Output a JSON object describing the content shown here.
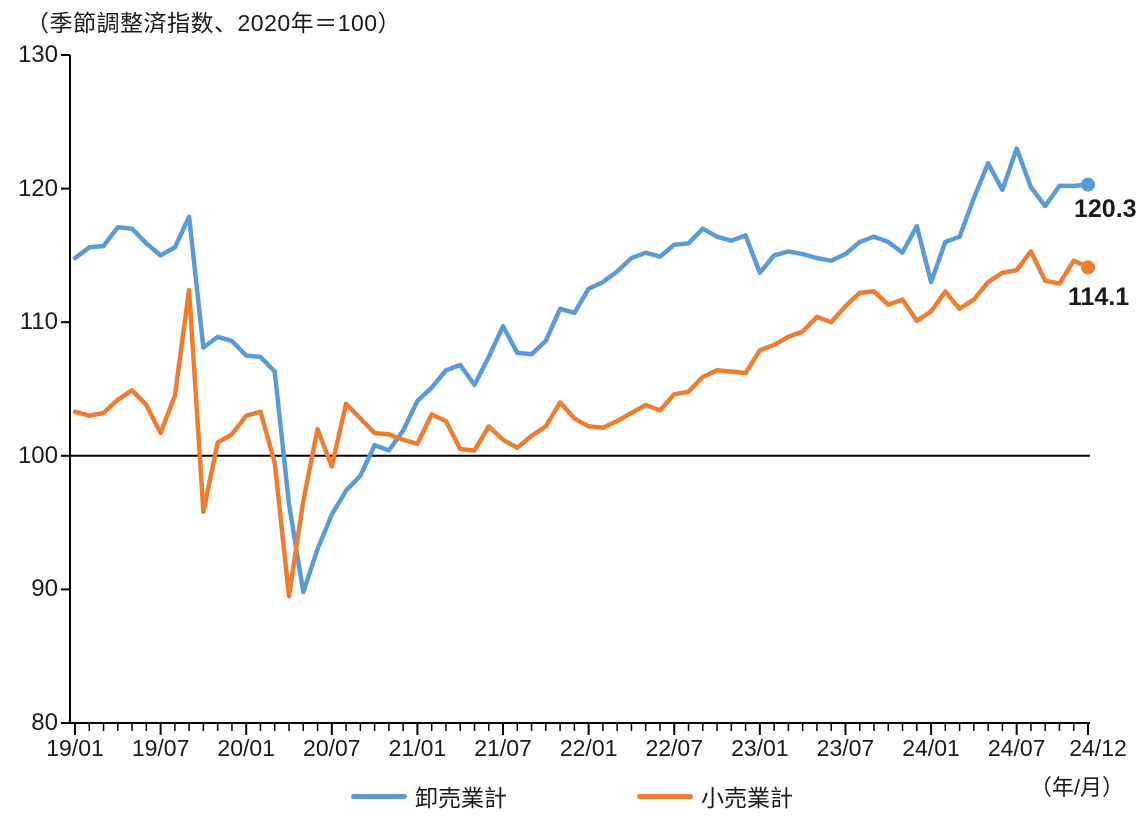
{
  "title": "（季節調整済指数、2020年＝100）",
  "axis_unit_label": "（年/月）",
  "annotations": {
    "wholesale_end_value": "120.3",
    "retail_end_value": "114.1"
  },
  "legend": {
    "items": [
      {
        "label": "卸売業計",
        "color": "#5B9BD5"
      },
      {
        "label": "小売業計",
        "color": "#ED7D31"
      }
    ]
  },
  "colors": {
    "wholesale": "#5B9BD5",
    "retail": "#ED7D31",
    "axis": "#000000",
    "text": "#1a1a1a"
  },
  "chart_data": {
    "type": "line",
    "title": "（季節調整済指数、2020年＝100）",
    "xlabel": "（年/月）",
    "ylabel": "",
    "ylim": [
      80,
      130
    ],
    "yticks": [
      80,
      90,
      100,
      110,
      120,
      130
    ],
    "baseline": 100,
    "grid": "single horizontal line at 100 only",
    "legend_position": "bottom-center",
    "x_tick_labels": [
      "19/01",
      "19/07",
      "20/01",
      "20/07",
      "21/01",
      "21/07",
      "22/01",
      "22/07",
      "23/01",
      "23/07",
      "24/01",
      "24/07",
      "24/12"
    ],
    "x": [
      "19/01",
      "19/02",
      "19/03",
      "19/04",
      "19/05",
      "19/06",
      "19/07",
      "19/08",
      "19/09",
      "19/10",
      "19/11",
      "19/12",
      "20/01",
      "20/02",
      "20/03",
      "20/04",
      "20/05",
      "20/06",
      "20/07",
      "20/08",
      "20/09",
      "20/10",
      "20/11",
      "20/12",
      "21/01",
      "21/02",
      "21/03",
      "21/04",
      "21/05",
      "21/06",
      "21/07",
      "21/08",
      "21/09",
      "21/10",
      "21/11",
      "21/12",
      "22/01",
      "22/02",
      "22/03",
      "22/04",
      "22/05",
      "22/06",
      "22/07",
      "22/08",
      "22/09",
      "22/10",
      "22/11",
      "22/12",
      "23/01",
      "23/02",
      "23/03",
      "23/04",
      "23/05",
      "23/06",
      "23/07",
      "23/08",
      "23/09",
      "23/10",
      "23/11",
      "23/12",
      "24/01",
      "24/02",
      "24/03",
      "24/04",
      "24/05",
      "24/06",
      "24/07",
      "24/08",
      "24/09",
      "24/10",
      "24/11",
      "24/12"
    ],
    "series": [
      {
        "name": "卸売業計",
        "color": "#5B9BD5",
        "end_label": "120.3",
        "values": [
          114.8,
          115.6,
          115.7,
          117.1,
          117.0,
          115.9,
          115.0,
          115.6,
          117.9,
          108.1,
          108.9,
          108.6,
          107.5,
          107.4,
          106.3,
          96.4,
          89.8,
          93.0,
          95.6,
          97.4,
          98.5,
          100.8,
          100.4,
          101.9,
          104.1,
          105.1,
          106.4,
          106.8,
          105.3,
          107.4,
          109.7,
          107.7,
          107.6,
          108.6,
          111.0,
          110.7,
          112.5,
          113.0,
          113.8,
          114.8,
          115.2,
          114.9,
          115.8,
          115.9,
          117.0,
          116.4,
          116.1,
          116.5,
          113.7,
          115.0,
          115.3,
          115.1,
          114.8,
          114.6,
          115.1,
          116.0,
          116.4,
          116.0,
          115.2,
          117.2,
          113.0,
          116.0,
          116.4,
          119.3,
          121.9,
          119.9,
          123.0,
          120.1,
          118.7,
          120.2,
          120.2,
          120.3
        ]
      },
      {
        "name": "小売業計",
        "color": "#ED7D31",
        "end_label": "114.1",
        "values": [
          103.3,
          103.0,
          103.2,
          104.2,
          104.9,
          103.8,
          101.7,
          104.5,
          112.4,
          95.8,
          101.0,
          101.6,
          103.0,
          103.3,
          99.5,
          89.5,
          96.6,
          102.0,
          99.2,
          103.9,
          102.8,
          101.7,
          101.6,
          101.2,
          100.9,
          103.1,
          102.6,
          100.5,
          100.4,
          102.2,
          101.2,
          100.6,
          101.5,
          102.2,
          104.0,
          102.8,
          102.2,
          102.1,
          102.6,
          103.2,
          103.8,
          103.4,
          104.6,
          104.8,
          105.9,
          106.4,
          106.3,
          106.2,
          107.9,
          108.3,
          108.9,
          109.3,
          110.4,
          110.0,
          111.2,
          112.2,
          112.3,
          111.3,
          111.7,
          110.1,
          110.8,
          112.3,
          111.0,
          111.7,
          113.0,
          113.7,
          113.9,
          115.3,
          113.1,
          112.9,
          114.6,
          114.1
        ]
      }
    ]
  }
}
